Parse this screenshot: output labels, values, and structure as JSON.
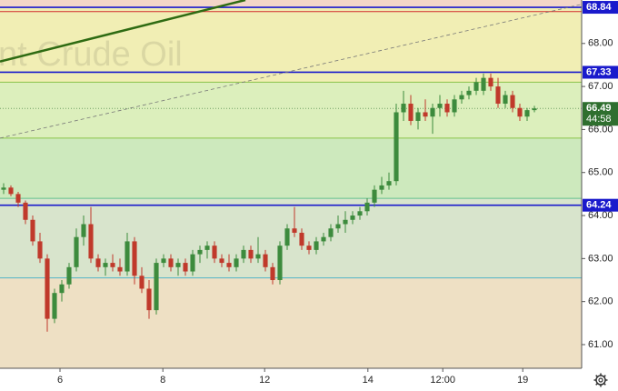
{
  "chart_data": {
    "type": "candlestick",
    "watermark": "nt Crude Oil",
    "xlim": [
      0,
      80
    ],
    "ylim": [
      60.45,
      69.01
    ],
    "xticks": [
      {
        "value": 8.25,
        "label": "6"
      },
      {
        "value": 22.4,
        "label": "8"
      },
      {
        "value": 36.4,
        "label": "12"
      },
      {
        "value": 50.6,
        "label": "14"
      },
      {
        "value": 60.9,
        "label": "12:00"
      },
      {
        "value": 71.9,
        "label": "19"
      }
    ],
    "yticks": [
      {
        "value": 61,
        "label": "61.00"
      },
      {
        "value": 62,
        "label": "62.00"
      },
      {
        "value": 63,
        "label": "63.00"
      },
      {
        "value": 64,
        "label": "64.00"
      },
      {
        "value": 65,
        "label": "65.00"
      },
      {
        "value": 66,
        "label": "66.00"
      },
      {
        "value": 67,
        "label": "67.00"
      },
      {
        "value": 68,
        "label": "68.00"
      }
    ],
    "up_color": "#3d8b3d",
    "down_color": "#c0392b",
    "zones": [
      {
        "from": 68.84,
        "to": 69.01,
        "color": "#f3d6c8"
      },
      {
        "from": 67.1,
        "to": 68.84,
        "color": "#f1eeb4"
      },
      {
        "from": 65.8,
        "to": 67.1,
        "color": "#dcefbc"
      },
      {
        "from": 64.4,
        "to": 65.8,
        "color": "#cde9bd"
      },
      {
        "from": 62.55,
        "to": 64.4,
        "color": "#d8e4cc"
      },
      {
        "from": 60.45,
        "to": 62.55,
        "color": "#eee0c4"
      }
    ],
    "levels": [
      {
        "value": 68.84,
        "label": "68.84",
        "color": "#1a1acc"
      },
      {
        "value": 68.74,
        "color": "#d32f2f"
      },
      {
        "value": 67.33,
        "label": "67.33",
        "color": "#1a1acc"
      },
      {
        "value": 67.1,
        "color": "#8bc34a"
      },
      {
        "value": 65.8,
        "color": "#8bc34a"
      },
      {
        "value": 64.4,
        "color": "#66c28e"
      },
      {
        "value": 64.24,
        "label": "64.24",
        "color": "#1a1acc"
      },
      {
        "value": 62.55,
        "color": "#4fb3c8"
      }
    ],
    "trendlines": [
      {
        "x": [
          0,
          33.75
        ],
        "y": [
          67.58,
          69.01
        ],
        "color": "#2e6b12",
        "dashed": false
      },
      {
        "x": [
          0,
          80
        ],
        "y": [
          65.8,
          68.91
        ],
        "color": "#777777",
        "dashed": true
      }
    ],
    "current": {
      "value": 66.49,
      "label": "66.49",
      "timer": "44:58",
      "color": "#2f6f2f"
    },
    "series": {
      "open": [
        64.6,
        64.65,
        64.5,
        64.3,
        63.9,
        63.4,
        63.0,
        61.6,
        62.2,
        62.4,
        62.8,
        63.5,
        63.8,
        63.0,
        62.8,
        62.9,
        62.8,
        62.7,
        63.4,
        62.6,
        62.3,
        61.8,
        62.9,
        63.0,
        62.8,
        62.9,
        62.7,
        63.1,
        63.2,
        63.3,
        63.0,
        62.9,
        62.8,
        63.0,
        63.2,
        63.0,
        63.1,
        62.8,
        62.5,
        63.3,
        63.7,
        63.6,
        63.3,
        63.2,
        63.4,
        63.5,
        63.7,
        63.8,
        63.9,
        64.0,
        64.1,
        64.3,
        64.6,
        64.7,
        64.8,
        66.4,
        66.6,
        66.2,
        66.4,
        66.3,
        66.5,
        66.6,
        66.4,
        66.7,
        66.8,
        66.9,
        66.9,
        67.2,
        67.0,
        66.6,
        66.8,
        66.5,
        66.3,
        66.45
      ],
      "high": [
        64.75,
        64.7,
        64.55,
        64.35,
        64.0,
        63.6,
        63.1,
        62.3,
        62.5,
        62.9,
        63.7,
        64.0,
        64.2,
        63.1,
        63.0,
        63.1,
        63.0,
        63.6,
        63.5,
        62.8,
        62.5,
        63.0,
        63.1,
        63.1,
        63.0,
        63.0,
        63.2,
        63.3,
        63.4,
        63.4,
        63.1,
        63.1,
        63.1,
        63.3,
        63.3,
        63.5,
        63.2,
        62.9,
        63.4,
        63.8,
        64.2,
        63.7,
        63.4,
        63.5,
        63.6,
        63.8,
        64.0,
        64.1,
        64.1,
        64.2,
        64.4,
        64.7,
        64.9,
        65.0,
        66.6,
        66.9,
        66.8,
        66.5,
        66.7,
        66.6,
        66.8,
        66.7,
        66.8,
        66.9,
        67.0,
        67.2,
        67.3,
        67.3,
        67.2,
        66.9,
        66.9,
        66.6,
        66.5,
        66.55
      ],
      "low": [
        64.5,
        64.45,
        64.2,
        63.8,
        63.3,
        62.9,
        61.3,
        61.5,
        62.0,
        62.3,
        62.7,
        63.3,
        62.9,
        62.7,
        62.6,
        62.7,
        62.6,
        62.6,
        62.4,
        62.2,
        61.6,
        61.7,
        62.8,
        62.7,
        62.6,
        62.6,
        62.6,
        62.9,
        63.0,
        62.9,
        62.8,
        62.7,
        62.7,
        62.9,
        62.9,
        62.9,
        62.7,
        62.4,
        62.4,
        63.2,
        63.5,
        63.2,
        63.1,
        63.1,
        63.3,
        63.4,
        63.6,
        63.6,
        63.8,
        63.9,
        64.0,
        64.2,
        64.5,
        64.6,
        64.7,
        66.2,
        66.1,
        66.0,
        66.2,
        65.9,
        66.3,
        66.3,
        66.3,
        66.6,
        66.7,
        66.8,
        66.8,
        66.9,
        66.5,
        66.5,
        66.4,
        66.2,
        66.2,
        66.4
      ],
      "close": [
        64.65,
        64.5,
        64.3,
        63.9,
        63.4,
        63.0,
        61.6,
        62.2,
        62.4,
        62.8,
        63.5,
        63.8,
        63.0,
        62.8,
        62.9,
        62.8,
        62.7,
        63.4,
        62.6,
        62.3,
        61.8,
        62.9,
        63.0,
        62.8,
        62.9,
        62.7,
        63.1,
        63.2,
        63.3,
        63.0,
        62.9,
        62.8,
        63.0,
        63.2,
        63.0,
        63.1,
        62.8,
        62.5,
        63.3,
        63.7,
        63.6,
        63.3,
        63.2,
        63.4,
        63.5,
        63.7,
        63.8,
        63.9,
        64.0,
        64.1,
        64.3,
        64.6,
        64.7,
        64.8,
        66.4,
        66.6,
        66.2,
        66.4,
        66.3,
        66.5,
        66.6,
        66.4,
        66.7,
        66.8,
        66.9,
        67.1,
        67.2,
        67.0,
        66.6,
        66.8,
        66.5,
        66.3,
        66.45,
        66.49
      ]
    }
  }
}
